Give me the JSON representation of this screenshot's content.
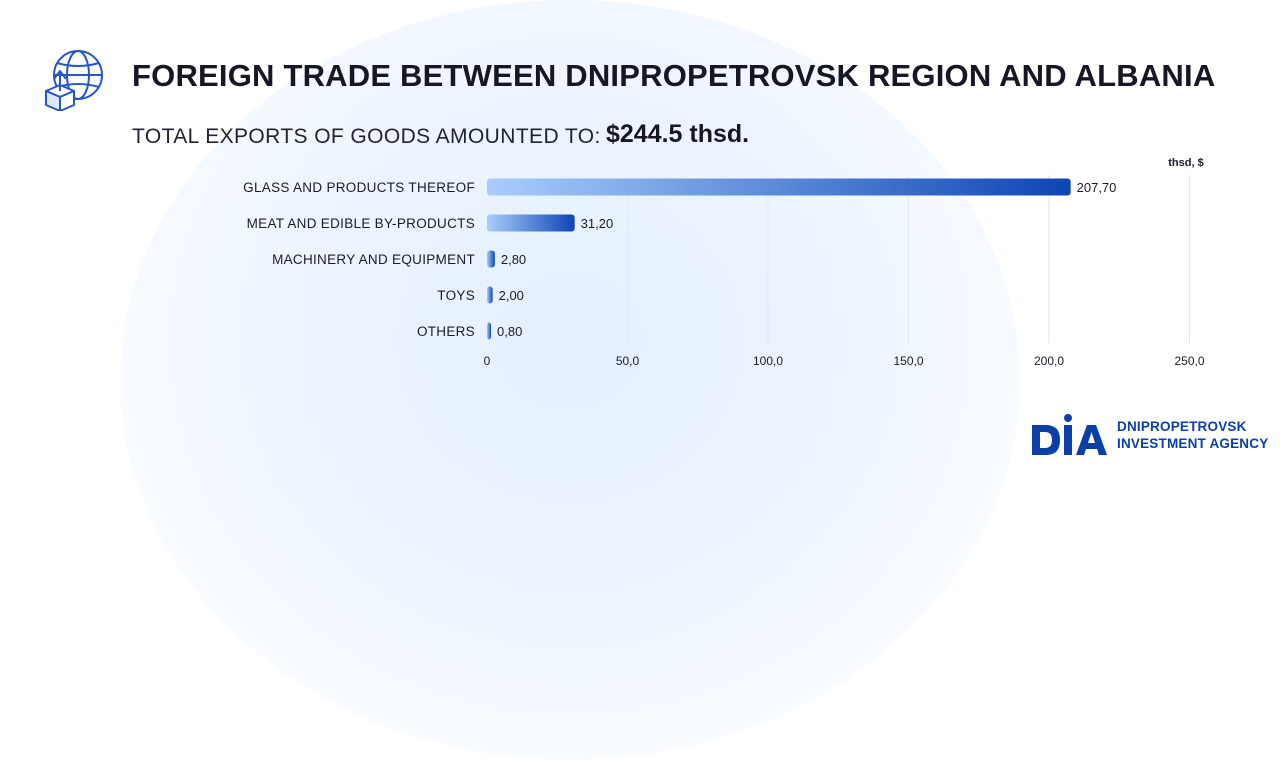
{
  "header": {
    "title": "FOREIGN TRADE BETWEEN DNIPROPETROVSK REGION AND ALBANIA",
    "subtitle_label": "TOTAL EXPORTS OF GOODS AMOUNTED TO:",
    "subtitle_value": "$244.5 thsd.",
    "icon": "globe-export-box-icon"
  },
  "chart_data": {
    "type": "bar",
    "orientation": "horizontal",
    "unit_label": "thsd, $",
    "categories": [
      "GLASS AND PRODUCTS THEREOF",
      "MEAT AND EDIBLE BY-PRODUCTS",
      "MACHINERY AND EQUIPMENT",
      "TOYS",
      "OTHERS"
    ],
    "values": [
      207.7,
      31.2,
      2.8,
      2.0,
      0.8
    ],
    "value_labels": [
      "207,70",
      "31,20",
      "2,80",
      "2,00",
      "0,80"
    ],
    "xlim": [
      0,
      250
    ],
    "xticks": [
      0,
      50,
      100,
      150,
      200,
      250
    ],
    "xtick_labels": [
      "0",
      "50,0",
      "100,0",
      "150,0",
      "200,0",
      "250,0"
    ],
    "grid": "vertical",
    "colors": {
      "bar_start": "#a9cdfc",
      "bar_end": "#0d45b3",
      "grid": "#e2e6ee",
      "label": "#1b1b2b"
    }
  },
  "logo": {
    "mark": "DIA",
    "line1": "DNIPROPETROVSK",
    "line2": "INVESTMENT AGENCY",
    "color": "#0a3fa8"
  }
}
